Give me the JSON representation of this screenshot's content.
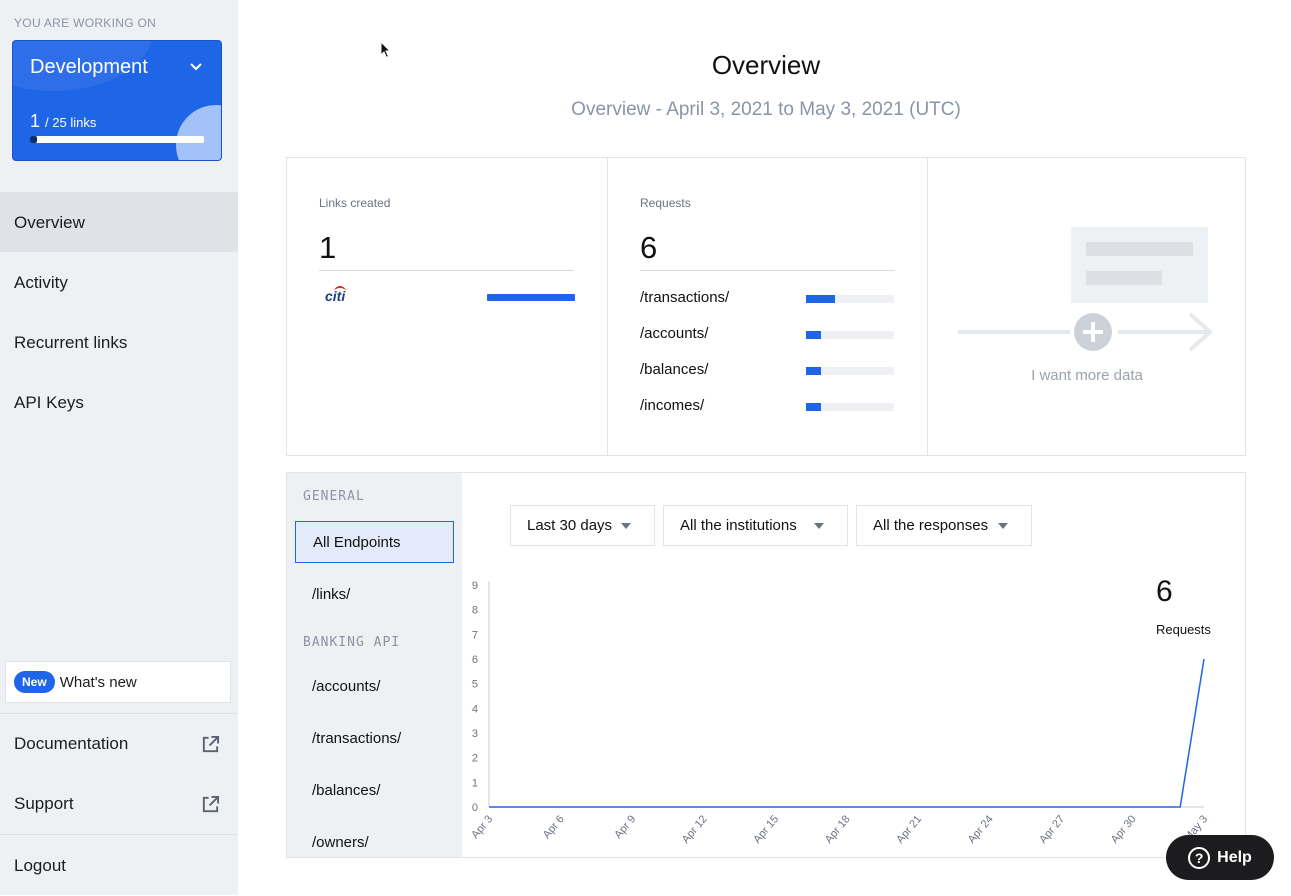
{
  "sidebar": {
    "working_on_label": "YOU ARE WORKING ON",
    "environment": {
      "name": "Development",
      "links_used": "1",
      "links_total": "/ 25 links",
      "usage_fraction": 0.04
    },
    "nav": [
      {
        "label": "Overview",
        "active": true
      },
      {
        "label": "Activity",
        "active": false
      },
      {
        "label": "Recurrent links",
        "active": false
      },
      {
        "label": "API Keys",
        "active": false
      }
    ],
    "whats_new": {
      "badge": "New",
      "label": "What's new"
    },
    "external_links": [
      {
        "label": "Documentation",
        "icon": "external-link-icon"
      },
      {
        "label": "Support",
        "icon": "external-link-icon"
      }
    ],
    "logout_label": "Logout"
  },
  "header": {
    "title": "Overview",
    "subtitle": "Overview - April 3, 2021 to May 3, 2021 (UTC)"
  },
  "stats": {
    "links_created": {
      "label": "Links created",
      "value": "1",
      "institutions": [
        {
          "logo_text": "citi",
          "fraction": 1.0
        }
      ]
    },
    "requests": {
      "label": "Requests",
      "value": "6",
      "endpoints": [
        {
          "path": "/transactions/",
          "fraction": 0.33
        },
        {
          "path": "/accounts/",
          "fraction": 0.17
        },
        {
          "path": "/balances/",
          "fraction": 0.17
        },
        {
          "path": "/incomes/",
          "fraction": 0.17
        }
      ]
    },
    "more_data_label": "I want more data"
  },
  "endpoints_panel": {
    "general_title": "GENERAL",
    "general_items": [
      {
        "label": "All Endpoints",
        "selected": true
      },
      {
        "label": "/links/",
        "selected": false
      }
    ],
    "banking_title": "BANKING API",
    "banking_items": [
      {
        "label": "/accounts/"
      },
      {
        "label": "/transactions/"
      },
      {
        "label": "/balances/"
      },
      {
        "label": "/owners/"
      }
    ]
  },
  "filters": {
    "period": "Last 30 days",
    "institutions": "All the institutions",
    "responses": "All the responses"
  },
  "chart_summary": {
    "value": "6",
    "label": "Requests"
  },
  "chart_data": {
    "type": "line",
    "xlabel": "",
    "ylabel": "",
    "ylim": [
      0,
      9
    ],
    "yticks": [
      "0",
      "1",
      "2",
      "3",
      "4",
      "5",
      "6",
      "7",
      "8",
      "9"
    ],
    "x": [
      "Apr 3",
      "Apr 4",
      "Apr 5",
      "Apr 6",
      "Apr 7",
      "Apr 8",
      "Apr 9",
      "Apr 10",
      "Apr 11",
      "Apr 12",
      "Apr 13",
      "Apr 14",
      "Apr 15",
      "Apr 16",
      "Apr 17",
      "Apr 18",
      "Apr 19",
      "Apr 20",
      "Apr 21",
      "Apr 22",
      "Apr 23",
      "Apr 24",
      "Apr 25",
      "Apr 26",
      "Apr 27",
      "Apr 28",
      "Apr 29",
      "Apr 30",
      "May 1",
      "May 2",
      "May 3"
    ],
    "xtick_labels": [
      "Apr 3",
      "Apr 6",
      "Apr 9",
      "Apr 12",
      "Apr 15",
      "Apr 18",
      "Apr 21",
      "Apr 24",
      "Apr 27",
      "Apr 30",
      "May 3"
    ],
    "series": [
      {
        "values": [
          0,
          0,
          0,
          0,
          0,
          0,
          0,
          0,
          0,
          0,
          0,
          0,
          0,
          0,
          0,
          0,
          0,
          0,
          0,
          0,
          0,
          0,
          0,
          0,
          0,
          0,
          0,
          0,
          0,
          0,
          6
        ]
      }
    ],
    "color": "#1f65e8",
    "grid": false
  },
  "help_label": "Help",
  "colors": {
    "accent": "#1f65e8",
    "sidebar_bg": "#eef1f4",
    "muted_text": "#8a94a6"
  }
}
